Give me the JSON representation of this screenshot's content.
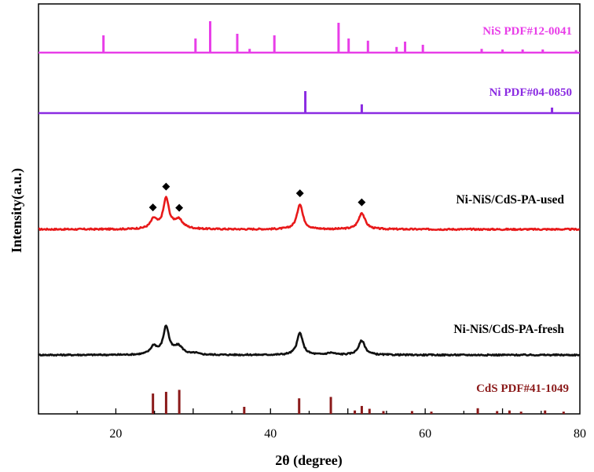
{
  "chart_data": {
    "type": "line",
    "xlabel": "2θ (degree)",
    "ylabel": "Intensity(a.u.)",
    "xlim": [
      10,
      80
    ],
    "x_ticks": [
      20,
      40,
      60,
      80
    ],
    "grid": false,
    "legend": "none",
    "marker_symbol": "◆",
    "reference_patterns": [
      {
        "name": "NiS PDF#12-0041",
        "color": "#e83ee8",
        "sticks": [
          [
            18.4,
            0.55
          ],
          [
            30.3,
            0.45
          ],
          [
            32.2,
            1.0
          ],
          [
            35.7,
            0.6
          ],
          [
            37.3,
            0.12
          ],
          [
            40.5,
            0.55
          ],
          [
            48.8,
            0.95
          ],
          [
            50.1,
            0.45
          ],
          [
            52.6,
            0.38
          ],
          [
            56.3,
            0.18
          ],
          [
            57.4,
            0.35
          ],
          [
            59.7,
            0.25
          ],
          [
            67.3,
            0.12
          ],
          [
            70.0,
            0.1
          ],
          [
            72.6,
            0.1
          ],
          [
            75.2,
            0.1
          ],
          [
            79.5,
            0.08
          ]
        ]
      },
      {
        "name": "Ni PDF#04-0850",
        "color": "#8b2be2",
        "sticks": [
          [
            44.5,
            1.0
          ],
          [
            51.8,
            0.4
          ],
          [
            76.4,
            0.25
          ]
        ]
      },
      {
        "name": "CdS PDF#41-1049",
        "color": "#8b1a1a",
        "sticks": [
          [
            24.8,
            0.72
          ],
          [
            26.5,
            0.78
          ],
          [
            28.2,
            0.85
          ],
          [
            36.6,
            0.25
          ],
          [
            43.7,
            0.55
          ],
          [
            47.8,
            0.6
          ],
          [
            50.9,
            0.12
          ],
          [
            51.8,
            0.28
          ],
          [
            52.8,
            0.18
          ],
          [
            54.6,
            0.1
          ],
          [
            58.3,
            0.1
          ],
          [
            60.8,
            0.08
          ],
          [
            66.8,
            0.2
          ],
          [
            69.3,
            0.1
          ],
          [
            70.9,
            0.12
          ],
          [
            72.4,
            0.08
          ],
          [
            75.5,
            0.12
          ],
          [
            77.9,
            0.08
          ]
        ]
      }
    ],
    "series": [
      {
        "name": "Ni-NiS/CdS-PA-used",
        "color": "#e8191a",
        "baseline": 0,
        "noise": 0.025,
        "peaks": [
          [
            24.9,
            0.32,
            0.5
          ],
          [
            26.5,
            1.0,
            0.45
          ],
          [
            28.1,
            0.3,
            0.7
          ],
          [
            43.8,
            0.85,
            0.45
          ],
          [
            51.8,
            0.55,
            0.5
          ]
        ],
        "markers": [
          24.8,
          26.5,
          28.2,
          43.8,
          51.8
        ]
      },
      {
        "name": "Ni-NiS/CdS-PA-fresh",
        "color": "#111111",
        "baseline": 0,
        "noise": 0.025,
        "peaks": [
          [
            24.9,
            0.3,
            0.5
          ],
          [
            26.5,
            1.0,
            0.45
          ],
          [
            28.1,
            0.3,
            0.7
          ],
          [
            30.3,
            0.05,
            0.4
          ],
          [
            43.8,
            0.8,
            0.45
          ],
          [
            47.8,
            0.07,
            0.6
          ],
          [
            51.8,
            0.52,
            0.5
          ]
        ]
      }
    ]
  }
}
